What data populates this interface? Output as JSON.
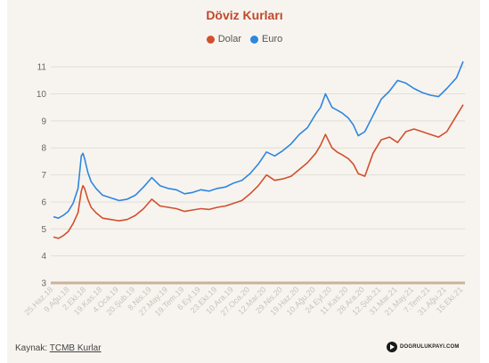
{
  "chart_data": {
    "type": "line",
    "title": "Döviz Kurları",
    "ylim": [
      3,
      11.5
    ],
    "yticks": [
      3,
      4,
      5,
      6,
      7,
      8,
      9,
      10,
      11
    ],
    "grid": "horizontal",
    "legend_position": "top-center",
    "x_tick_labels": [
      "25.Haz.18",
      "9.Ağu.18",
      "2.Eki.18",
      "19.Kas.18",
      "4.Oca.19",
      "20.Şub.19",
      "8.Nis.19",
      "27.May.19",
      "19.Tem.19",
      "6.Eyl.19",
      "23.Eki.19",
      "10.Ara.19",
      "27.Oca.20",
      "12.Mar.20",
      "29.Nis.20",
      "19.Haz.20",
      "10.Ağu.20",
      "24.Eyl.20",
      "11.Kas.20",
      "28.Ara.20",
      "12.Şub.21",
      "31.Mar.21",
      "21.May.21",
      "7.Tem.21",
      "31.Ağu.21",
      "15.Eki.21"
    ],
    "x": [
      0,
      0.3,
      0.6,
      0.9,
      1.2,
      1.5,
      1.7,
      1.8,
      1.9,
      2,
      2.1,
      2.3,
      2.6,
      3,
      3.5,
      4,
      4.5,
      5,
      5.5,
      6,
      6.5,
      7,
      7.5,
      8,
      8.5,
      9,
      9.5,
      10,
      10.5,
      11,
      11.5,
      12,
      12.5,
      13,
      13.5,
      14,
      14.5,
      15,
      15.5,
      16,
      16.3,
      16.6,
      17,
      17.3,
      17.6,
      18,
      18.3,
      18.6,
      19,
      19.5,
      20,
      20.5,
      21,
      21.5,
      22,
      22.5,
      23,
      23.5,
      24,
      24.3,
      24.6,
      25
    ],
    "series": [
      {
        "name": "Dolar",
        "color": "#d1502e",
        "values": [
          4.7,
          4.65,
          4.75,
          4.9,
          5.2,
          5.6,
          6.4,
          6.6,
          6.5,
          6.3,
          6.1,
          5.8,
          5.6,
          5.4,
          5.35,
          5.3,
          5.35,
          5.5,
          5.75,
          6.1,
          5.85,
          5.8,
          5.75,
          5.65,
          5.7,
          5.75,
          5.72,
          5.8,
          5.85,
          5.95,
          6.05,
          6.3,
          6.6,
          7.0,
          6.8,
          6.85,
          6.95,
          7.2,
          7.45,
          7.8,
          8.1,
          8.5,
          8.0,
          7.85,
          7.75,
          7.6,
          7.4,
          7.05,
          6.95,
          7.8,
          8.3,
          8.4,
          8.2,
          8.6,
          8.7,
          8.6,
          8.5,
          8.4,
          8.6,
          8.9,
          9.2,
          9.6
        ]
      },
      {
        "name": "Euro",
        "color": "#2f86de",
        "values": [
          5.45,
          5.4,
          5.5,
          5.65,
          5.95,
          6.5,
          7.7,
          7.8,
          7.6,
          7.35,
          7.1,
          6.75,
          6.5,
          6.25,
          6.15,
          6.05,
          6.1,
          6.25,
          6.55,
          6.9,
          6.6,
          6.5,
          6.45,
          6.3,
          6.35,
          6.45,
          6.4,
          6.5,
          6.55,
          6.7,
          6.8,
          7.05,
          7.4,
          7.85,
          7.7,
          7.9,
          8.15,
          8.5,
          8.75,
          9.25,
          9.5,
          10.0,
          9.5,
          9.4,
          9.3,
          9.1,
          8.85,
          8.45,
          8.6,
          9.2,
          9.8,
          10.1,
          10.5,
          10.4,
          10.2,
          10.05,
          9.95,
          9.9,
          10.2,
          10.4,
          10.6,
          11.2
        ]
      }
    ]
  },
  "footer": {
    "source_label": "Kaynak:",
    "source_link": "TCMB Kurlar",
    "logo_text": "DOGRULUKPAYI.COM"
  }
}
